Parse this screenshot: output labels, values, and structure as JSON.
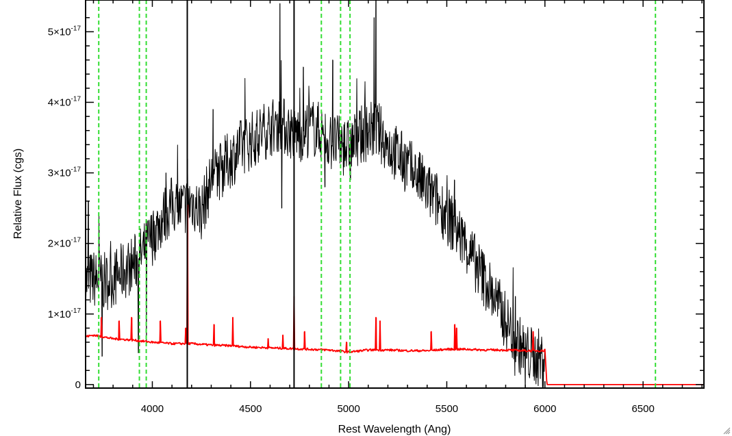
{
  "chart_data": {
    "type": "line",
    "title": "",
    "xlabel": "Rest Wavelength (Ang)",
    "ylabel": "Relative Flux (cgs)",
    "xlim": [
      3660,
      6810
    ],
    "ylim": [
      -5e-19,
      5.45e-17
    ],
    "x_ticks": [
      {
        "value": 4000,
        "label": "4000"
      },
      {
        "value": 4500,
        "label": "4500"
      },
      {
        "value": 5000,
        "label": "5000"
      },
      {
        "value": 5500,
        "label": "5500"
      },
      {
        "value": 6000,
        "label": "6000"
      },
      {
        "value": 6500,
        "label": "6500"
      }
    ],
    "y_ticks": [
      {
        "value": 0,
        "mantissa": "0",
        "exponent": ""
      },
      {
        "value": 1e-17,
        "mantissa": "1×10",
        "exponent": "-17"
      },
      {
        "value": 2e-17,
        "mantissa": "2×10",
        "exponent": "-17"
      },
      {
        "value": 3e-17,
        "mantissa": "3×10",
        "exponent": "-17"
      },
      {
        "value": 4e-17,
        "mantissa": "4×10",
        "exponent": "-17"
      },
      {
        "value": 5e-17,
        "mantissa": "5×10",
        "exponent": "-17"
      }
    ],
    "line_markers_green_dashed": [
      3727,
      3934,
      3969,
      4861,
      4959,
      5007,
      6563
    ],
    "line_markers_black_solid": [
      4178,
      4722
    ],
    "series": [
      {
        "color": "#000000",
        "style": "noisy",
        "x": [
          3660,
          3700,
          3750,
          3800,
          3850,
          3900,
          3950,
          4000,
          4050,
          4100,
          4150,
          4200,
          4250,
          4300,
          4350,
          4400,
          4450,
          4500,
          4550,
          4600,
          4650,
          4700,
          4750,
          4800,
          4850,
          4900,
          4950,
          5000,
          5050,
          5100,
          5150,
          5200,
          5250,
          5300,
          5350,
          5400,
          5450,
          5500,
          5550,
          5600,
          5650,
          5700,
          5750,
          5800,
          5850,
          5900,
          5950,
          6000
        ],
        "y": [
          1.45e-17,
          1.5e-17,
          1.45e-17,
          1.5e-17,
          1.6e-17,
          1.7e-17,
          1.85e-17,
          2.1e-17,
          2.35e-17,
          2.55e-17,
          2.5e-17,
          2.6e-17,
          2.45e-17,
          2.9e-17,
          3.05e-17,
          3.2e-17,
          3.35e-17,
          3.45e-17,
          3.55e-17,
          3.65e-17,
          3.7e-17,
          3.6e-17,
          3.55e-17,
          3.65e-17,
          3.6e-17,
          3.45e-17,
          3.4e-17,
          3.35e-17,
          3.5e-17,
          3.6e-17,
          3.6e-17,
          3.4e-17,
          3.25e-17,
          3.1e-17,
          2.95e-17,
          2.75e-17,
          2.6e-17,
          2.4e-17,
          2.2e-17,
          1.95e-17,
          1.7e-17,
          1.45e-17,
          1.2e-17,
          9e-18,
          6.5e-18,
          4.5e-18,
          4e-18,
          3.5e-18
        ],
        "spikes": [
          {
            "x": 3675,
            "y": 2.6e-17
          },
          {
            "x": 3728,
            "y": 2.4e-17
          },
          {
            "x": 3745,
            "y": 4e-18
          },
          {
            "x": 3930,
            "y": 4.5e-18
          },
          {
            "x": 3970,
            "y": 5.5e-18
          },
          {
            "x": 4070,
            "y": 3e-17
          },
          {
            "x": 4180,
            "y": 3.2e-17
          },
          {
            "x": 4310,
            "y": 3.9e-17
          },
          {
            "x": 4650,
            "y": 5.4e-17
          },
          {
            "x": 4660,
            "y": 2.5e-17
          },
          {
            "x": 4770,
            "y": 4.5e-17
          },
          {
            "x": 4880,
            "y": 2.8e-17
          },
          {
            "x": 4920,
            "y": 4.6e-17
          },
          {
            "x": 5010,
            "y": 2.9e-17
          },
          {
            "x": 5130,
            "y": 5.2e-17
          },
          {
            "x": 5140,
            "y": 5.45e-17
          },
          {
            "x": 5540,
            "y": 2.9e-17
          },
          {
            "x": 5850,
            "y": 1.25e-17
          },
          {
            "x": 5900,
            "y": -1e-18
          },
          {
            "x": 5990,
            "y": -1e-18
          }
        ]
      },
      {
        "color": "#ff0000",
        "style": "smooth",
        "x": [
          3660,
          3700,
          3800,
          3900,
          4000,
          4100,
          4200,
          4300,
          4400,
          4500,
          4600,
          4700,
          4800,
          4900,
          5000,
          5100,
          5200,
          5300,
          5400,
          5500,
          5600,
          5700,
          5800,
          5900,
          5995,
          6000,
          6010,
          6810
        ],
        "y": [
          6.8e-18,
          7e-18,
          6.5e-18,
          6.3e-18,
          6e-18,
          5.8e-18,
          5.8e-18,
          5.6e-18,
          5.5e-18,
          5.3e-18,
          5.2e-18,
          5.1e-18,
          5e-18,
          4.9e-18,
          4.6e-18,
          4.9e-18,
          4.9e-18,
          4.8e-18,
          4.8e-18,
          5e-18,
          5e-18,
          4.9e-18,
          4.9e-18,
          4.8e-18,
          4.8e-18,
          5e-18,
          0.0,
          0.0
        ],
        "spikes": [
          {
            "x": 3740,
            "y": 9.5e-18
          },
          {
            "x": 3830,
            "y": 9e-18
          },
          {
            "x": 3895,
            "y": 9.5e-18
          },
          {
            "x": 4040,
            "y": 9e-18
          },
          {
            "x": 4170,
            "y": 8e-18
          },
          {
            "x": 4180,
            "y": 2.55e-17
          },
          {
            "x": 4315,
            "y": 8.5e-18
          },
          {
            "x": 4410,
            "y": 9.5e-18
          },
          {
            "x": 4590,
            "y": 6.5e-18
          },
          {
            "x": 4665,
            "y": 7e-18
          },
          {
            "x": 4722,
            "y": 1.25e-17
          },
          {
            "x": 4775,
            "y": 7.5e-18
          },
          {
            "x": 4990,
            "y": 6e-18
          },
          {
            "x": 5140,
            "y": 9.5e-18
          },
          {
            "x": 5160,
            "y": 9e-18
          },
          {
            "x": 5420,
            "y": 7.5e-18
          },
          {
            "x": 5540,
            "y": 8.5e-18
          },
          {
            "x": 5550,
            "y": 8e-18
          },
          {
            "x": 5940,
            "y": 7.5e-18
          }
        ]
      }
    ]
  }
}
